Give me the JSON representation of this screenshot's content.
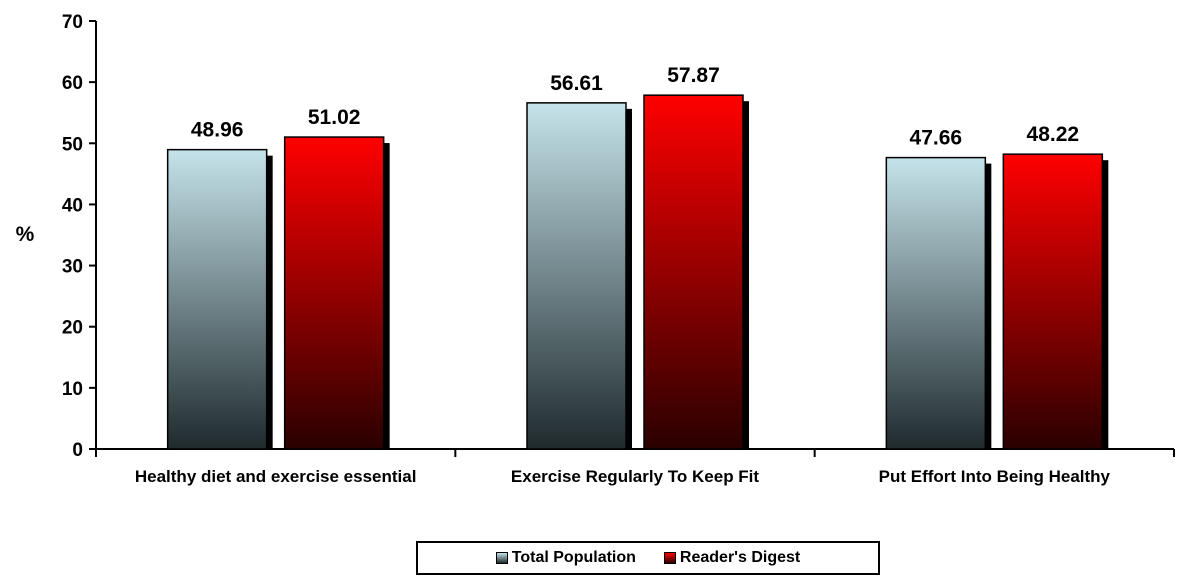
{
  "chart_data": {
    "type": "bar",
    "ylabel": "%",
    "ylim": [
      0,
      70
    ],
    "yticks": [
      0,
      10,
      20,
      30,
      40,
      50,
      60,
      70
    ],
    "categories": [
      "Healthy diet and exercise essential",
      "Exercise Regularly To Keep Fit",
      "Put Effort Into Being Healthy"
    ],
    "series": [
      {
        "name": "Total Population",
        "values": [
          48.96,
          56.61,
          47.66
        ],
        "labels": [
          "48.96",
          "56.61",
          "47.66"
        ],
        "color_top": "#c5e3ea",
        "color_bottom": "#1f2a2d"
      },
      {
        "name": "Reader's Digest",
        "values": [
          51.02,
          57.87,
          48.22
        ],
        "labels": [
          "51.02",
          "57.87",
          "48.22"
        ],
        "color_top": "#ff0000",
        "color_bottom": "#2a0000"
      }
    ],
    "legend_position": "bottom",
    "grid": false
  }
}
